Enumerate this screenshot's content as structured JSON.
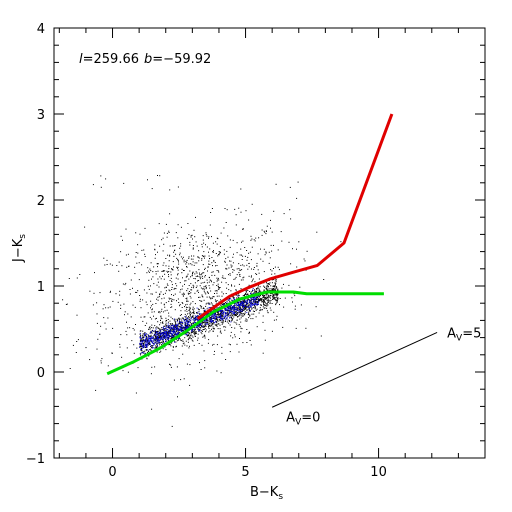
{
  "chart_data": {
    "type": "scatter",
    "annotation": {
      "l_label": "l",
      "l_value": "=259.66",
      "b_label": "b",
      "b_value": "=−59.92"
    },
    "xlabel": {
      "main": "B−K",
      "sub": "s"
    },
    "ylabel": {
      "main": "J−K",
      "sub": "s"
    },
    "xlim": [
      -2.2,
      14
    ],
    "ylim": [
      -1,
      4
    ],
    "xticks_major": [
      0,
      5,
      10
    ],
    "yticks_major": [
      -1,
      0,
      1,
      2,
      3,
      4
    ],
    "tick_labels_x": [
      "0",
      "5",
      "10"
    ],
    "tick_labels_y": [
      "−1",
      "0",
      "1",
      "2",
      "3",
      "4"
    ],
    "giant_branch": {
      "color": "#e00000",
      "x": [
        3.2,
        3.8,
        4.4,
        5.1,
        5.9,
        6.8,
        7.7,
        8.7,
        10.5
      ],
      "y": [
        0.62,
        0.75,
        0.88,
        0.98,
        1.08,
        1.16,
        1.24,
        1.5,
        3.0
      ]
    },
    "dwarf_branch": {
      "color": "#00dd00",
      "x": [
        -0.2,
        0.8,
        1.8,
        2.8,
        3.8,
        4.8,
        5.8,
        6.8,
        7.3,
        10.2
      ],
      "y": [
        -0.02,
        0.12,
        0.28,
        0.48,
        0.7,
        0.85,
        0.93,
        0.93,
        0.91,
        0.91
      ]
    },
    "reddening_vector": {
      "x": [
        6.0,
        12.2
      ],
      "y": [
        -0.41,
        0.46
      ],
      "start_label": {
        "main": "A",
        "sub": "V",
        "value": "=0"
      },
      "end_label": {
        "main": "A",
        "sub": "V",
        "value": "=5"
      }
    },
    "point_colors": {
      "field": "#000000",
      "cluster": "#0000cc"
    },
    "grid": false,
    "legend": "none"
  }
}
